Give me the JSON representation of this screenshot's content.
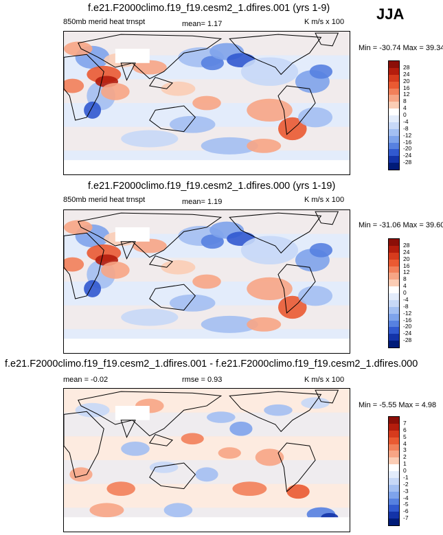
{
  "season": "JJA",
  "panels": [
    {
      "title": "f.e21.F2000climo.f19_f19.cesm2_1.dfires.001 (yrs 1-9)",
      "left_label": "850mb merid heat trnspt",
      "center_label": "mean=   1.17",
      "units": "K m/s x 100",
      "minmax": "Min = -30.74 Max =  39.34",
      "levels": [
        "28",
        "24",
        "20",
        "16",
        "12",
        "8",
        "4",
        "0",
        "-4",
        "-8",
        "-12",
        "-16",
        "-20",
        "-24",
        "-28"
      ],
      "kind": "full"
    },
    {
      "title": "f.e21.F2000climo.f19_f19.cesm2_1.dfires.000 (yrs 1-19)",
      "left_label": "850mb merid heat trnspt",
      "center_label": "mean=   1.19",
      "units": "K m/s x 100",
      "minmax": "Min = -31.06 Max =  39.60",
      "levels": [
        "28",
        "24",
        "20",
        "16",
        "12",
        "8",
        "4",
        "0",
        "-4",
        "-8",
        "-12",
        "-16",
        "-20",
        "-24",
        "-28"
      ],
      "kind": "full"
    },
    {
      "title": "f.e21.F2000climo.f19_f19.cesm2_1.dfires.001 - f.e21.F2000climo.f19_f19.cesm2_1.dfires.000",
      "left_label": "mean =  -0.02",
      "center_label": "rmse =   0.93",
      "units": "K m/s x 100",
      "minmax": "Min =  -5.55 Max =   4.98",
      "levels": [
        "7",
        "6",
        "5",
        "4",
        "3",
        "2",
        "1",
        "0",
        "-1",
        "-2",
        "-3",
        "-4",
        "-5",
        "-6",
        "-7"
      ],
      "kind": "diff"
    }
  ],
  "colors": {
    "scale": [
      "#8b0f08",
      "#b41d0d",
      "#d63b1d",
      "#ea5a32",
      "#f2805a",
      "#f7a585",
      "#fbcdb5",
      "#fdebe0",
      "#ffffff",
      "#e3ecfb",
      "#c7d8f7",
      "#a3bff2",
      "#7ea3eb",
      "#5781e0",
      "#3159cf",
      "#1333a8",
      "#001b78"
    ],
    "land_outline": "#000000",
    "missing": "#ffffff"
  },
  "chart_data": [
    {
      "type": "heatmap",
      "title": "f.e21.F2000climo.f19_f19.cesm2_1.dfires.001 (yrs 1-9)",
      "variable": "850mb merid heat trnspt",
      "units": "K m/s x 100",
      "mean": 1.17,
      "min": -30.74,
      "max": 39.34,
      "contour_levels": [
        -28,
        -24,
        -20,
        -16,
        -12,
        -8,
        -4,
        0,
        4,
        8,
        12,
        16,
        20,
        24,
        28
      ]
    },
    {
      "type": "heatmap",
      "title": "f.e21.F2000climo.f19_f19.cesm2_1.dfires.000 (yrs 1-19)",
      "variable": "850mb merid heat trnspt",
      "units": "K m/s x 100",
      "mean": 1.19,
      "min": -31.06,
      "max": 39.6,
      "contour_levels": [
        -28,
        -24,
        -20,
        -16,
        -12,
        -8,
        -4,
        0,
        4,
        8,
        12,
        16,
        20,
        24,
        28
      ]
    },
    {
      "type": "heatmap",
      "title": "f.e21.F2000climo.f19_f19.cesm2_1.dfires.001 - f.e21.F2000climo.f19_f19.cesm2_1.dfires.000",
      "units": "K m/s x 100",
      "mean": -0.02,
      "rmse": 0.93,
      "min": -5.55,
      "max": 4.98,
      "contour_levels": [
        -7,
        -6,
        -5,
        -4,
        -3,
        -2,
        -1,
        0,
        1,
        2,
        3,
        4,
        5,
        6,
        7
      ]
    }
  ]
}
